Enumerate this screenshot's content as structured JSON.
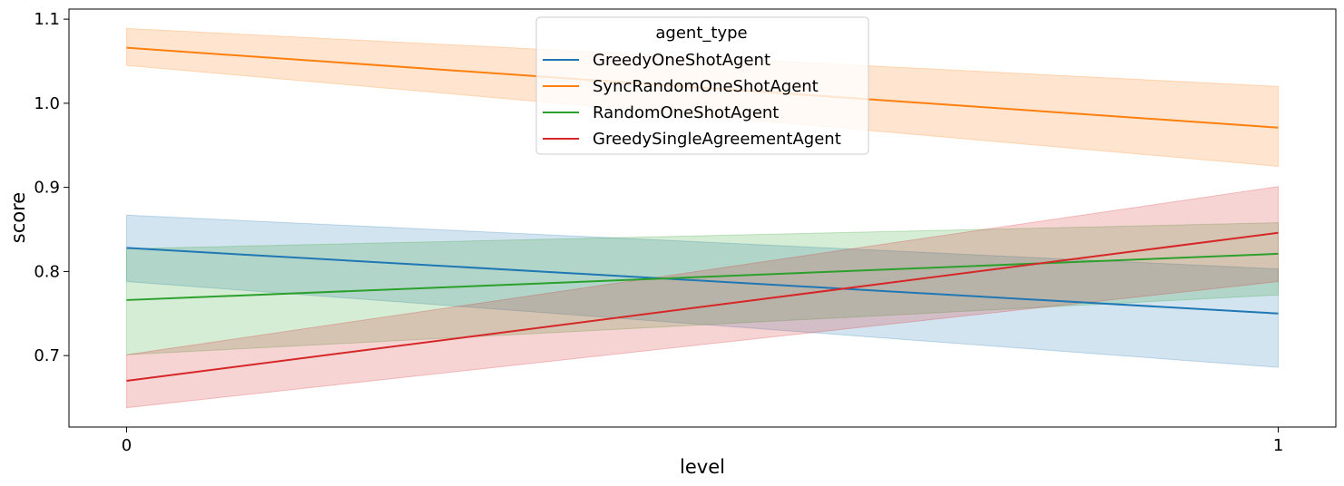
{
  "chart_data": {
    "type": "line",
    "xlabel": "level",
    "ylabel": "score",
    "x": [
      0,
      1
    ],
    "xticks": [
      "0",
      "1"
    ],
    "yticks": [
      "0.7",
      "0.8",
      "0.9",
      "1.0",
      "1.1"
    ],
    "ylim": [
      0.615,
      1.112
    ],
    "xlim": [
      -0.05,
      1.05
    ],
    "grid": false,
    "legend": {
      "title": "agent_type",
      "placement": "top-center"
    },
    "series": [
      {
        "name": "GreedyOneShotAgent",
        "color": "#1f77b4",
        "values": [
          0.828,
          0.75
        ],
        "ci_low": [
          0.788,
          0.686
        ],
        "ci_high": [
          0.867,
          0.803
        ]
      },
      {
        "name": "SyncRandomOneShotAgent",
        "color": "#ff7f0e",
        "values": [
          1.066,
          0.971
        ],
        "ci_low": [
          1.045,
          0.925
        ],
        "ci_high": [
          1.089,
          1.02
        ]
      },
      {
        "name": "RandomOneShotAgent",
        "color": "#2ca02c",
        "values": [
          0.766,
          0.821
        ],
        "ci_low": [
          0.701,
          0.772
        ],
        "ci_high": [
          0.827,
          0.858
        ]
      },
      {
        "name": "GreedySingleAgreementAgent",
        "color": "#d62728",
        "values": [
          0.67,
          0.846
        ],
        "ci_low": [
          0.638,
          0.788
        ],
        "ci_high": [
          0.701,
          0.901
        ]
      }
    ]
  }
}
